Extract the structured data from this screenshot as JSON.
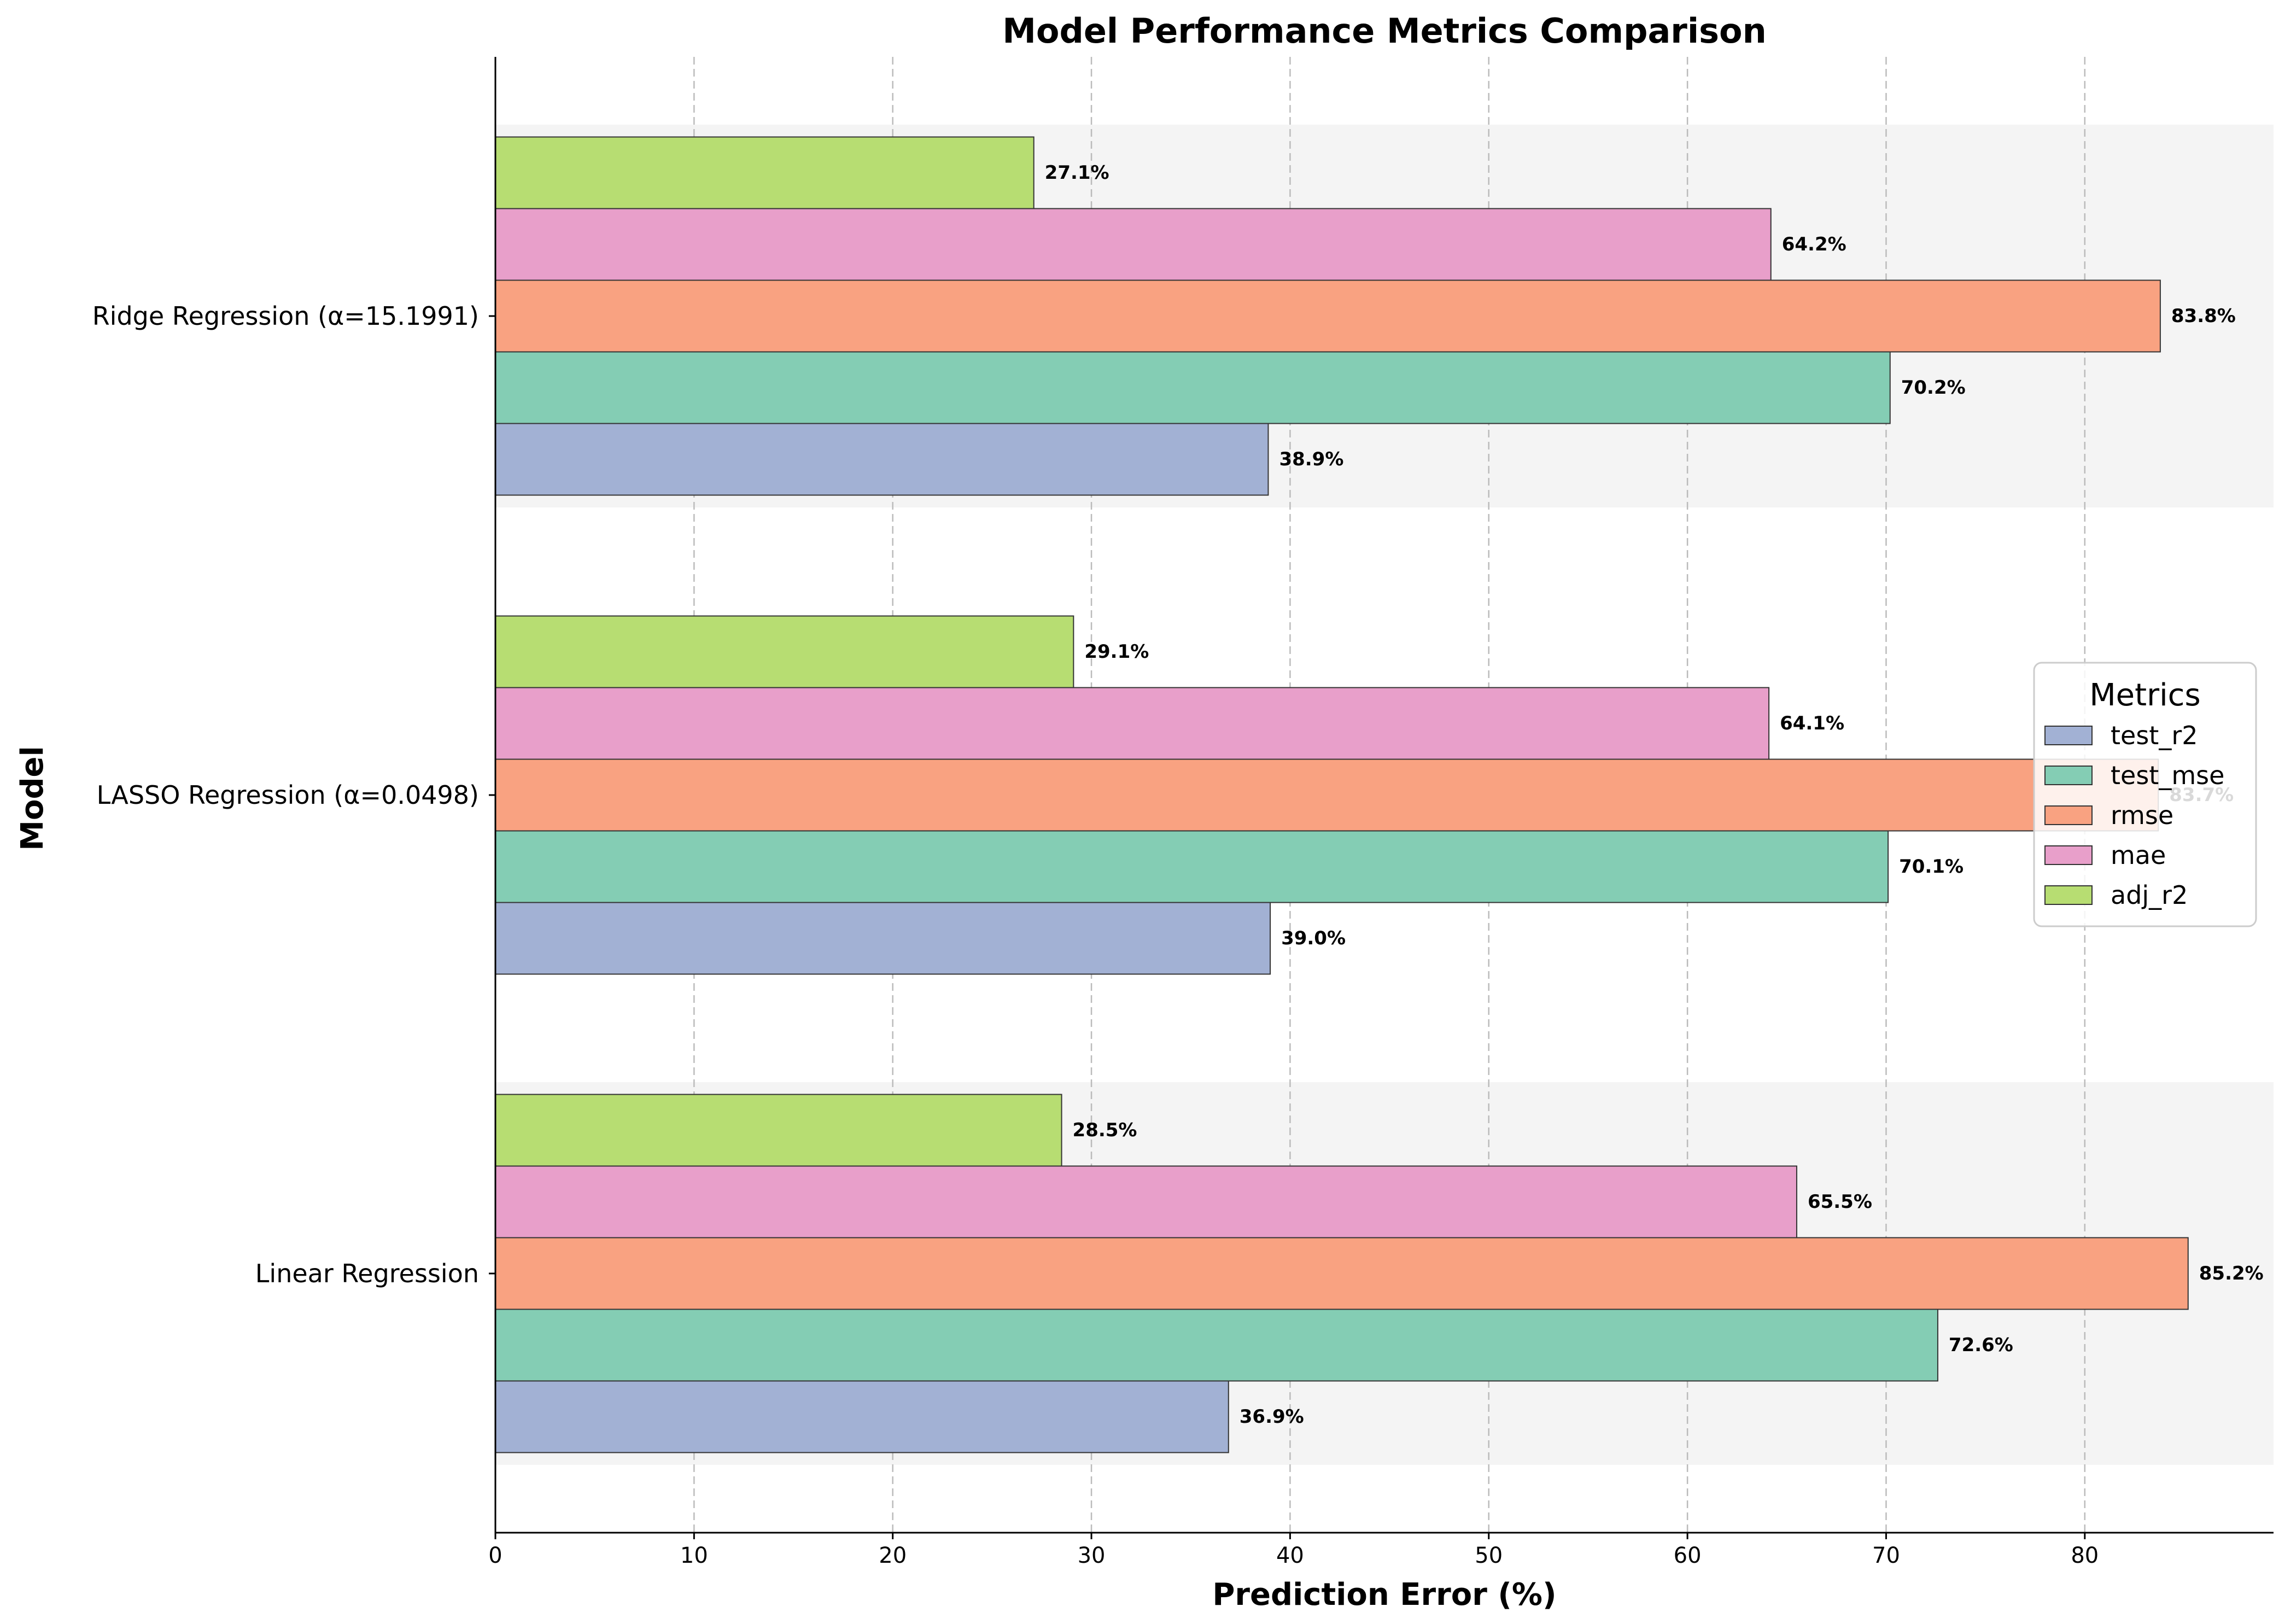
{
  "chart_data": {
    "type": "bar",
    "orientation": "horizontal",
    "title": "Model Performance Metrics Comparison",
    "xlabel": "Prediction Error (%)",
    "ylabel": "Model",
    "xlim": [
      0,
      89.5
    ],
    "xticks": [
      0,
      10,
      20,
      30,
      40,
      50,
      60,
      70,
      80
    ],
    "grid": "x, dashed",
    "categories": [
      "Linear Regression",
      "LASSO Regression (α=0.0498)",
      "Ridge Regression (α=15.1991)"
    ],
    "series": [
      {
        "name": "test_r2",
        "color": "#a2b1d4",
        "values": [
          36.9,
          39.0,
          38.9
        ]
      },
      {
        "name": "test_mse",
        "color": "#84cdb4",
        "values": [
          72.6,
          70.1,
          70.2
        ]
      },
      {
        "name": "rmse",
        "color": "#f9a281",
        "values": [
          85.2,
          83.7,
          83.8
        ]
      },
      {
        "name": "mae",
        "color": "#e89fca",
        "values": [
          65.5,
          64.1,
          64.2
        ]
      },
      {
        "name": "adj_r2",
        "color": "#b7dd72",
        "values": [
          28.5,
          29.1,
          27.1
        ]
      }
    ],
    "data_label_suffix": "%",
    "legend": {
      "title": "Metrics",
      "placement": "center-right"
    },
    "band_color": "#f4f4f4",
    "gridline_color": "#bbbbbb",
    "bar_edge_color": "#333333"
  }
}
